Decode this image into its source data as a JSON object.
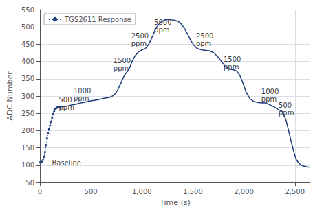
{
  "chart_data": {
    "type": "line",
    "xlabel": "Time (s)",
    "ylabel": "ADC Number",
    "xlim": [
      0,
      2650
    ],
    "ylim": [
      50,
      550
    ],
    "xticks": [
      0,
      500,
      1000,
      1500,
      2000,
      2500
    ],
    "yticks": [
      50,
      100,
      150,
      200,
      250,
      300,
      350,
      400,
      450,
      500,
      550
    ],
    "grid": true,
    "legend": "upper left",
    "series": [
      {
        "name": "TGS2611 Response",
        "color": "#1f3d7a",
        "line_style": "dotted",
        "marker": "point",
        "x": [
          0,
          10,
          20,
          30,
          40,
          50,
          60,
          70,
          80,
          90,
          100,
          110,
          120,
          130,
          140,
          150,
          160,
          170,
          180,
          190,
          200
        ],
        "values": [
          108,
          108,
          110,
          115,
          124,
          138,
          158,
          178,
          192,
          205,
          215,
          225,
          237,
          248,
          256,
          262,
          265,
          267,
          268,
          268,
          268
        ]
      },
      {
        "name": "TGS2611 Response",
        "color": "#1f3d7a",
        "line_style": "solid",
        "x": [
          200,
          220,
          250,
          280,
          310,
          350,
          400,
          440,
          470,
          500,
          540,
          580,
          610,
          640,
          660,
          680,
          700,
          730,
          760,
          790,
          820,
          840,
          860,
          880,
          900,
          930,
          960,
          990,
          1010,
          1030,
          1050,
          1070,
          1090,
          1110,
          1130,
          1160,
          1190,
          1220,
          1250,
          1280,
          1300,
          1330,
          1360,
          1390,
          1420,
          1450,
          1480,
          1510,
          1540,
          1570,
          1600,
          1630,
          1660,
          1700,
          1740,
          1780,
          1820,
          1860,
          1900,
          1930,
          1960,
          1990,
          2020,
          2060,
          2100,
          2140,
          2180,
          2210,
          2230,
          2260,
          2300,
          2340,
          2370,
          2390,
          2410,
          2430,
          2450,
          2470,
          2490,
          2510,
          2535,
          2560,
          2590,
          2620,
          2640
        ],
        "values": [
          268,
          269,
          270,
          272,
          274,
          276,
          280,
          282,
          284,
          286,
          288,
          290,
          292,
          294,
          295,
          296,
          298,
          304,
          316,
          335,
          355,
          365,
          372,
          382,
          398,
          415,
          426,
          432,
          435,
          437,
          443,
          452,
          464,
          477,
          492,
          506,
          515,
          520,
          521,
          521,
          520,
          519,
          515,
          507,
          494,
          478,
          460,
          447,
          438,
          435,
          433,
          432,
          431,
          426,
          415,
          400,
          384,
          378,
          376,
          372,
          360,
          338,
          312,
          292,
          284,
          281,
          280,
          280,
          278,
          274,
          268,
          260,
          257,
          247,
          232,
          210,
          185,
          160,
          138,
          118,
          107,
          100,
          97,
          95,
          94
        ]
      }
    ],
    "annotations": [
      {
        "text": "Baseline",
        "x": 118,
        "y": 107
      },
      {
        "text": "500\nppm",
        "x": 185,
        "y": 278
      },
      {
        "text": "1000\nppm",
        "x": 330,
        "y": 303
      },
      {
        "text": "1500\nppm",
        "x": 720,
        "y": 392
      },
      {
        "text": "2500\nppm",
        "x": 895,
        "y": 462
      },
      {
        "text": "5000\nppm",
        "x": 1120,
        "y": 502
      },
      {
        "text": "2500\nppm",
        "x": 1530,
        "y": 462
      },
      {
        "text": "1500\nppm",
        "x": 1800,
        "y": 396
      },
      {
        "text": "1000\nppm",
        "x": 2170,
        "y": 302
      },
      {
        "text": "500\nppm",
        "x": 2340,
        "y": 262
      }
    ]
  }
}
